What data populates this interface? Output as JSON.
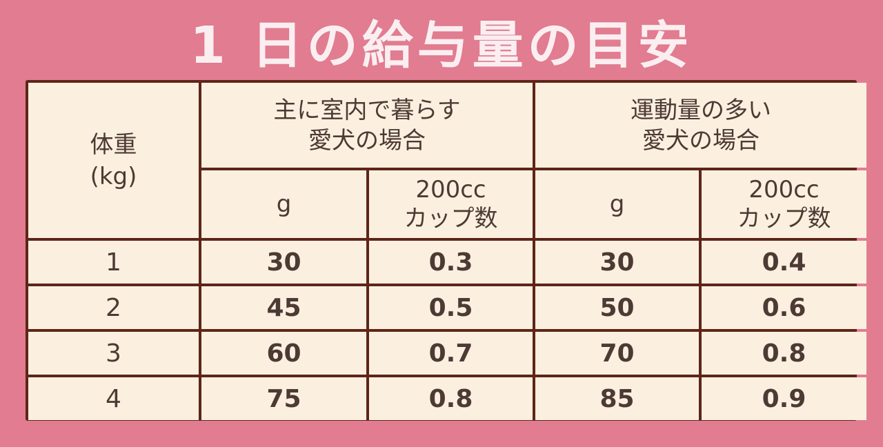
{
  "title": "1 日の給与量の目安",
  "table": {
    "header": {
      "weight_line1": "体重",
      "weight_line2": "(kg)",
      "indoor_line1": "主に室内で暮らす",
      "indoor_line2": "愛犬の場合",
      "active_line1": "運動量の多い",
      "active_line2": "愛犬の場合",
      "grams": "g",
      "cups_line1": "200cc",
      "cups_line2": "カップ数"
    },
    "rows": [
      {
        "weight": "1",
        "indoor_g": "30",
        "indoor_cups": "0.3",
        "active_g": "30",
        "active_cups": "0.4"
      },
      {
        "weight": "2",
        "indoor_g": "45",
        "indoor_cups": "0.5",
        "active_g": "50",
        "active_cups": "0.6"
      },
      {
        "weight": "3",
        "indoor_g": "60",
        "indoor_cups": "0.7",
        "active_g": "70",
        "active_cups": "0.8"
      },
      {
        "weight": "4",
        "indoor_g": "75",
        "indoor_cups": "0.8",
        "active_g": "85",
        "active_cups": "0.9"
      }
    ]
  },
  "colors": {
    "background": "#e27c91",
    "title_text": "#fbeef0",
    "table_border": "#5e2519",
    "cell_background": "#fbf0e0",
    "cell_text": "#4d3a34"
  }
}
